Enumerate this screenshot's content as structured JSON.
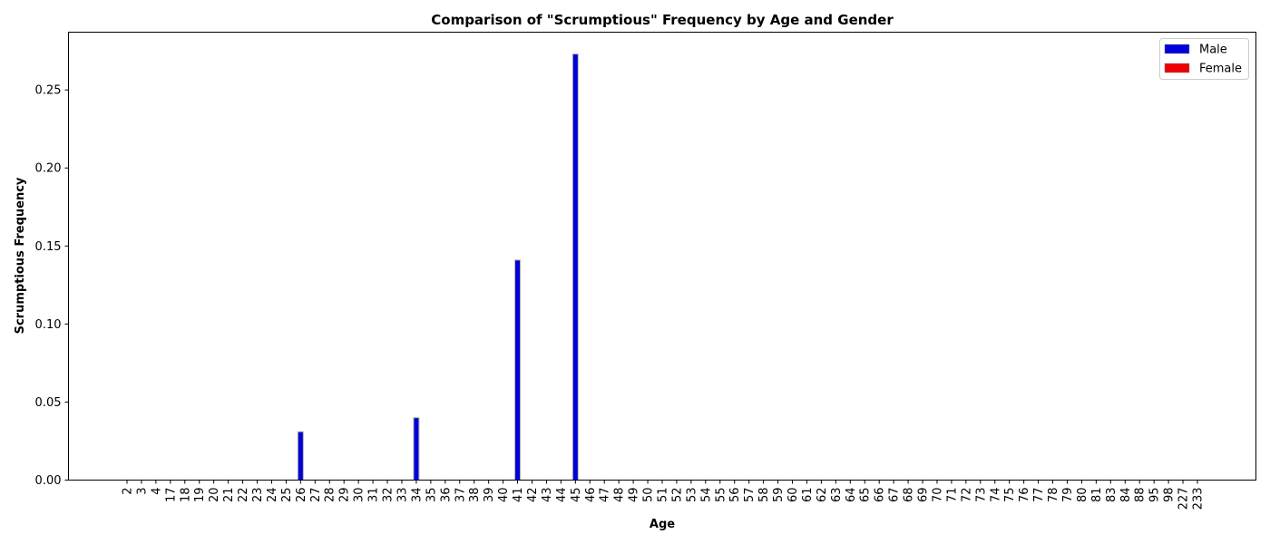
{
  "chart_data": {
    "type": "bar",
    "title": "Comparison of \"Scrumptious\" Frequency by Age and Gender",
    "xlabel": "Age",
    "ylabel": "Scrumptious Frequency",
    "ylim": [
      0,
      0.287
    ],
    "yticks": [
      "0.00",
      "0.05",
      "0.10",
      "0.15",
      "0.20",
      "0.25"
    ],
    "legend_position": "top-right",
    "grid": false,
    "categories": [
      "2",
      "3",
      "4",
      "17",
      "18",
      "19",
      "20",
      "21",
      "22",
      "23",
      "24",
      "25",
      "26",
      "27",
      "28",
      "29",
      "30",
      "31",
      "32",
      "33",
      "34",
      "35",
      "36",
      "37",
      "38",
      "39",
      "40",
      "41",
      "42",
      "43",
      "44",
      "45",
      "46",
      "47",
      "48",
      "49",
      "50",
      "51",
      "52",
      "53",
      "54",
      "55",
      "56",
      "57",
      "58",
      "59",
      "60",
      "61",
      "62",
      "63",
      "64",
      "65",
      "66",
      "67",
      "68",
      "69",
      "70",
      "71",
      "72",
      "73",
      "74",
      "75",
      "76",
      "77",
      "78",
      "79",
      "80",
      "81",
      "83",
      "84",
      "88",
      "95",
      "98",
      "227",
      "233"
    ],
    "series": [
      {
        "name": "Male",
        "color": "#0000dd",
        "values": [
          0,
          0,
          0,
          0,
          0,
          0,
          0,
          0,
          0,
          0,
          0,
          0,
          0.031,
          0,
          0,
          0,
          0,
          0,
          0,
          0,
          0.04,
          0,
          0,
          0,
          0,
          0,
          0,
          0.141,
          0,
          0,
          0,
          0.273,
          0,
          0,
          0,
          0,
          0,
          0,
          0,
          0,
          0,
          0,
          0,
          0,
          0,
          0,
          0,
          0,
          0,
          0,
          0,
          0,
          0,
          0,
          0,
          0,
          0,
          0,
          0,
          0,
          0,
          0,
          0,
          0,
          0,
          0,
          0,
          0,
          0,
          0,
          0,
          0,
          0,
          0,
          0
        ]
      },
      {
        "name": "Female",
        "color": "#ee0000",
        "values": [
          0,
          0,
          0,
          0,
          0,
          0,
          0,
          0,
          0,
          0,
          0,
          0,
          0,
          0,
          0,
          0,
          0,
          0,
          0,
          0,
          0,
          0,
          0,
          0,
          0,
          0,
          0,
          0,
          0,
          0,
          0,
          0,
          0,
          0,
          0,
          0,
          0,
          0,
          0,
          0,
          0,
          0,
          0,
          0,
          0,
          0,
          0,
          0,
          0,
          0,
          0,
          0,
          0,
          0,
          0,
          0,
          0,
          0,
          0,
          0,
          0,
          0,
          0,
          0,
          0,
          0,
          0,
          0,
          0,
          0,
          0,
          0,
          0,
          0,
          0
        ]
      }
    ]
  }
}
